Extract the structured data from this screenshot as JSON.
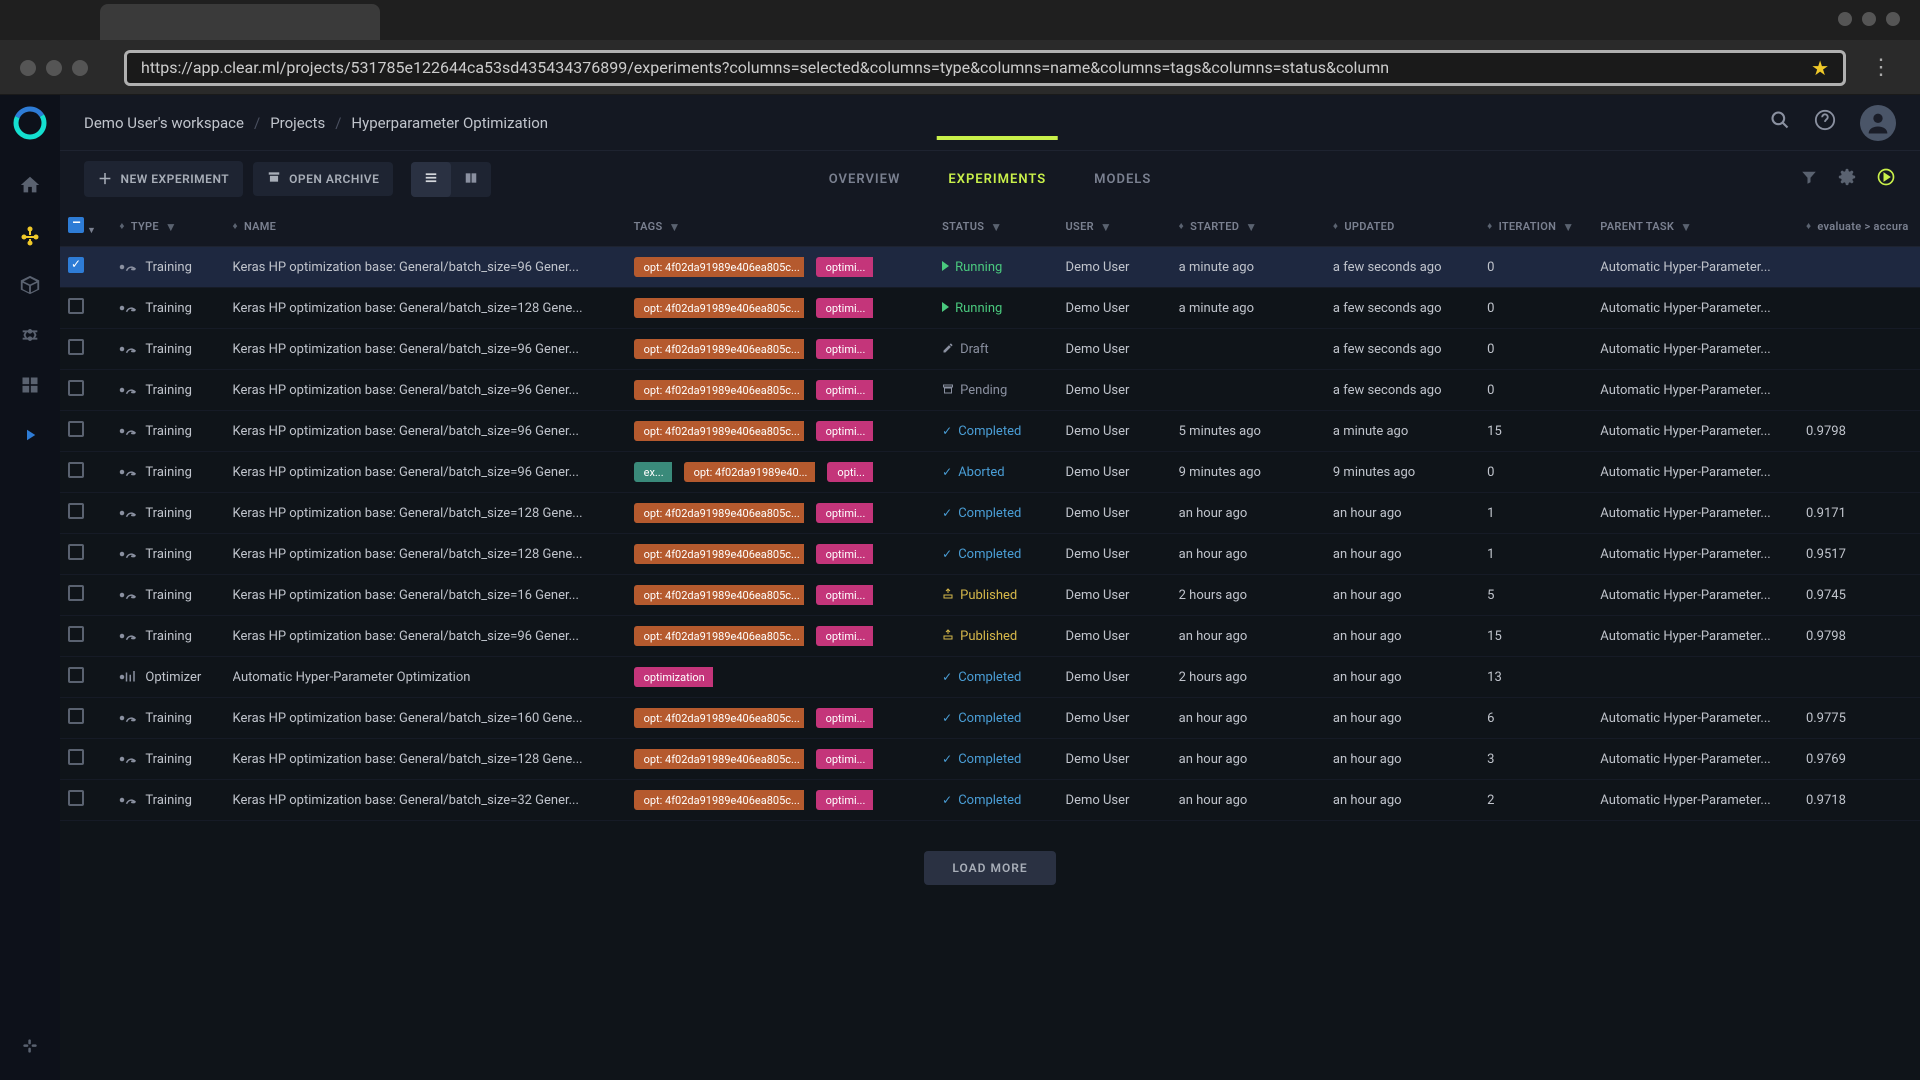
{
  "browser": {
    "url": "https://app.clear.ml/projects/531785e122644ca53sd435434376899/experiments?columns=selected&columns=type&columns=name&columns=tags&columns=status&column"
  },
  "breadcrumb": {
    "workspace": "Demo User's workspace",
    "projects": "Projects",
    "current": "Hyperparameter Optimization"
  },
  "toolbar": {
    "new_experiment": "NEW EXPERIMENT",
    "open_archive": "OPEN ARCHIVE"
  },
  "tabs": {
    "overview": "OVERVIEW",
    "experiments": "EXPERIMENTS",
    "models": "MODELS"
  },
  "columns": {
    "type": "TYPE",
    "name": "NAME",
    "tags": "TAGS",
    "status": "STATUS",
    "user": "USER",
    "started": "STARTED",
    "updated": "UPDATED",
    "iteration": "ITERATION",
    "parent": "PARENT TASK",
    "metric": "evaluate > accura"
  },
  "tag_labels": {
    "opt": "opt: 4f02da91989e406ea805c...",
    "opt_short": "opt: 4f02da91989e40...",
    "optimi": "optimi...",
    "opti": "opti...",
    "ex": "ex...",
    "optimization": "optimization"
  },
  "status_labels": {
    "running": "Running",
    "draft": "Draft",
    "pending": "Pending",
    "completed": "Completed",
    "aborted": "Aborted",
    "published": "Published"
  },
  "colors": {
    "accent": "#c9f04a",
    "tag_orange": "#b55a2e",
    "tag_magenta": "#c4357a",
    "tag_teal": "#3a8a7a",
    "st_running": "#4ac97e",
    "st_completed": "#4a9ed6",
    "st_published": "#d6b84a",
    "st_neutral": "#8a90a0",
    "bg": "#0f1419",
    "panel": "#141822"
  },
  "rows": [
    {
      "selected": true,
      "type": "Training",
      "name": "Keras HP optimization base: General/batch_size=96 Gener...",
      "tags": [
        "opt",
        "optimi"
      ],
      "status": "running",
      "user": "Demo User",
      "started": "a minute ago",
      "updated": "a few seconds ago",
      "iter": "0",
      "parent": "Automatic Hyper-Parameter...",
      "metric": ""
    },
    {
      "selected": false,
      "type": "Training",
      "name": "Keras HP optimization base: General/batch_size=128 Gene...",
      "tags": [
        "opt",
        "optimi"
      ],
      "status": "running",
      "user": "Demo User",
      "started": "a minute ago",
      "updated": "a few seconds ago",
      "iter": "0",
      "parent": "Automatic Hyper-Parameter...",
      "metric": ""
    },
    {
      "selected": false,
      "type": "Training",
      "name": "Keras HP optimization base: General/batch_size=96 Gener...",
      "tags": [
        "opt",
        "optimi"
      ],
      "status": "draft",
      "user": "Demo User",
      "started": "",
      "updated": "a few seconds ago",
      "iter": "0",
      "parent": "Automatic Hyper-Parameter...",
      "metric": ""
    },
    {
      "selected": false,
      "type": "Training",
      "name": "Keras HP optimization base: General/batch_size=96 Gener...",
      "tags": [
        "opt",
        "optimi"
      ],
      "status": "pending",
      "user": "Demo User",
      "started": "",
      "updated": "a few seconds ago",
      "iter": "0",
      "parent": "Automatic Hyper-Parameter...",
      "metric": ""
    },
    {
      "selected": false,
      "type": "Training",
      "name": "Keras HP optimization base: General/batch_size=96 Gener...",
      "tags": [
        "opt",
        "optimi"
      ],
      "status": "completed",
      "user": "Demo User",
      "started": "5 minutes ago",
      "updated": "a minute ago",
      "iter": "15",
      "parent": "Automatic Hyper-Parameter...",
      "metric": "0.9798"
    },
    {
      "selected": false,
      "type": "Training",
      "name": "Keras HP optimization base: General/batch_size=96 Gener...",
      "tags": [
        "ex",
        "opt_short",
        "opti"
      ],
      "status": "aborted",
      "user": "Demo User",
      "started": "9 minutes ago",
      "updated": "9 minutes ago",
      "iter": "0",
      "parent": "Automatic Hyper-Parameter...",
      "metric": ""
    },
    {
      "selected": false,
      "type": "Training",
      "name": "Keras HP optimization base: General/batch_size=128 Gene...",
      "tags": [
        "opt",
        "optimi"
      ],
      "status": "completed",
      "user": "Demo User",
      "started": "an hour ago",
      "updated": "an hour ago",
      "iter": "1",
      "parent": "Automatic Hyper-Parameter...",
      "metric": "0.9171"
    },
    {
      "selected": false,
      "type": "Training",
      "name": "Keras HP optimization base: General/batch_size=128 Gene...",
      "tags": [
        "opt",
        "optimi"
      ],
      "status": "completed",
      "user": "Demo User",
      "started": "an hour ago",
      "updated": "an hour ago",
      "iter": "1",
      "parent": "Automatic Hyper-Parameter...",
      "metric": "0.9517"
    },
    {
      "selected": false,
      "type": "Training",
      "name": "Keras HP optimization base: General/batch_size=16 Gener...",
      "tags": [
        "opt",
        "optimi"
      ],
      "status": "published",
      "user": "Demo User",
      "started": "2 hours ago",
      "updated": "an hour ago",
      "iter": "5",
      "parent": "Automatic Hyper-Parameter...",
      "metric": "0.9745"
    },
    {
      "selected": false,
      "type": "Training",
      "name": "Keras HP optimization base: General/batch_size=96 Gener...",
      "tags": [
        "opt",
        "optimi"
      ],
      "status": "published",
      "user": "Demo User",
      "started": "an hour ago",
      "updated": "an hour ago",
      "iter": "15",
      "parent": "Automatic Hyper-Parameter...",
      "metric": "0.9798"
    },
    {
      "selected": false,
      "type": "Optimizer",
      "name": "Automatic Hyper-Parameter Optimization",
      "tags": [
        "optimization"
      ],
      "status": "completed",
      "user": "Demo User",
      "started": "2 hours ago",
      "updated": "an hour ago",
      "iter": "13",
      "parent": "",
      "metric": ""
    },
    {
      "selected": false,
      "type": "Training",
      "name": "Keras HP optimization base: General/batch_size=160 Gene...",
      "tags": [
        "opt",
        "optimi"
      ],
      "status": "completed",
      "user": "Demo User",
      "started": "an hour ago",
      "updated": "an hour ago",
      "iter": "6",
      "parent": "Automatic Hyper-Parameter...",
      "metric": "0.9775"
    },
    {
      "selected": false,
      "type": "Training",
      "name": "Keras HP optimization base: General/batch_size=128 Gene...",
      "tags": [
        "opt",
        "optimi"
      ],
      "status": "completed",
      "user": "Demo User",
      "started": "an hour ago",
      "updated": "an hour ago",
      "iter": "3",
      "parent": "Automatic Hyper-Parameter...",
      "metric": "0.9769"
    },
    {
      "selected": false,
      "type": "Training",
      "name": "Keras HP optimization base: General/batch_size=32 Gener...",
      "tags": [
        "opt",
        "optimi"
      ],
      "status": "completed",
      "user": "Demo User",
      "started": "an hour ago",
      "updated": "an hour ago",
      "iter": "2",
      "parent": "Automatic Hyper-Parameter...",
      "metric": "0.9718"
    }
  ],
  "load_more": "LOAD MORE"
}
